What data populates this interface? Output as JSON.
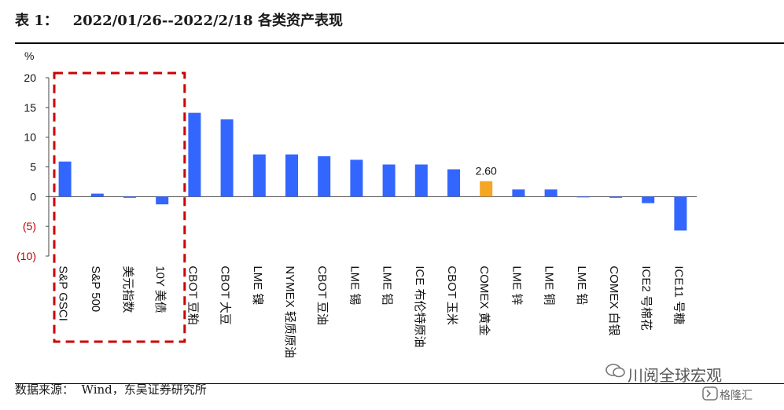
{
  "header": {
    "title": "表 1：   2022/01/26--2022/2/18 各类资产表现"
  },
  "footer": {
    "source": "数据来源：  Wind，东吴证券研究所",
    "watermark_account": "川阅全球宏观",
    "watermark_site": "格隆汇"
  },
  "colors": {
    "bar": "#3366ff",
    "highlight": "#f5a623",
    "negative_tick": "#c00000",
    "box": "#cc0000"
  },
  "chart_data": {
    "type": "bar",
    "ylabel": "%",
    "ylim": [
      -10,
      20
    ],
    "yticks": [
      20,
      15,
      10,
      5,
      0,
      -5,
      -10
    ],
    "ytick_labels": [
      "20",
      "15",
      "10",
      "5",
      "0",
      "(5)",
      "(10)"
    ],
    "categories": [
      "S&P GSCI",
      "S&P 500",
      "美元指数",
      "10Y 美债",
      "CBOT 豆粕",
      "CBOT 大豆",
      "LME 镍",
      "NYMEX 轻质原油",
      "CBOT 豆油",
      "LME 锡",
      "LME 铝",
      "ICE 布伦特原油",
      "CBOT 玉米",
      "COMEX 黄金",
      "LME 锌",
      "LME 铜",
      "LME 铅",
      "COMEX 白银",
      "ICE2 号棉花",
      "ICE11 号糖"
    ],
    "values": [
      5.9,
      0.5,
      -0.2,
      -1.3,
      14.1,
      13.0,
      7.1,
      7.1,
      6.8,
      6.2,
      5.4,
      5.4,
      4.6,
      2.6,
      1.2,
      1.2,
      0.0,
      -0.2,
      -1.1,
      -5.7
    ],
    "highlight_index": 13,
    "annotation": "2.60",
    "boxed_categories": [
      "S&P GSCI",
      "S&P 500",
      "美元指数",
      "10Y 美债"
    ]
  }
}
